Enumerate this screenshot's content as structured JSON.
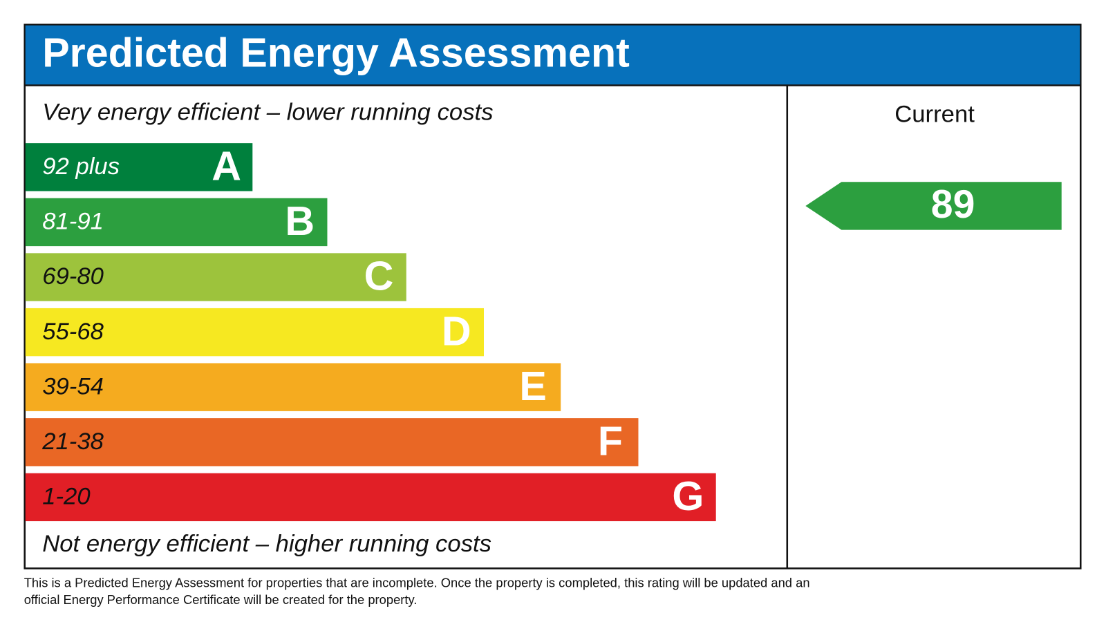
{
  "header": {
    "title": "Predicted Energy Assessment"
  },
  "scale": {
    "top_label": "Very energy efficient – lower running costs",
    "bottom_label": "Not energy efficient – higher running costs",
    "bands": [
      {
        "range": "92 plus",
        "letter": "A"
      },
      {
        "range": "81-91",
        "letter": "B"
      },
      {
        "range": "69-80",
        "letter": "C"
      },
      {
        "range": "55-68",
        "letter": "D"
      },
      {
        "range": "39-54",
        "letter": "E"
      },
      {
        "range": "21-38",
        "letter": "F"
      },
      {
        "range": "1-20",
        "letter": "G"
      }
    ]
  },
  "current": {
    "header": "Current",
    "value": 89
  },
  "footer": {
    "lines": [
      "This is a Predicted Energy Assessment for properties that are incomplete. Once the property is completed, this rating will be updated and an",
      "official Energy Performance Certificate will be created for the property."
    ]
  }
}
